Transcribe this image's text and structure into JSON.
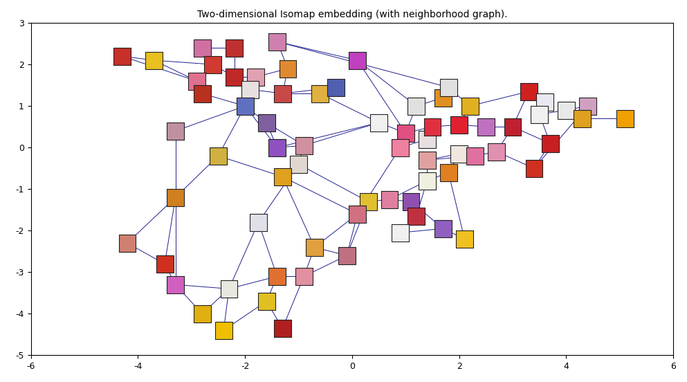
{
  "chart_data": {
    "type": "scatter",
    "title": "Two-dimensional Isomap embedding (with neighborhood graph).",
    "marker": "square",
    "x": [
      -4.3,
      -3.7,
      -2.8,
      -2.2,
      -1.4,
      -2.6,
      -2.9,
      -2.2,
      -1.8,
      -1.2,
      -2.8,
      -1.9,
      -1.3,
      -0.6,
      -2.0,
      0.1,
      -0.3,
      -1.6,
      -3.3,
      -1.4,
      -0.9,
      -2.5,
      -1.0,
      -1.3,
      -3.3,
      -1.75,
      -0.7,
      -4.2,
      -3.5,
      -3.3,
      -2.3,
      -1.4,
      -1.6,
      -2.8,
      -2.4,
      -1.3,
      -0.9,
      -0.1,
      0.3,
      0.7,
      1.1,
      0.1,
      1.2,
      0.9,
      1.7,
      2.1,
      0.5,
      1.0,
      0.9,
      1.4,
      1.2,
      1.7,
      1.5,
      2.0,
      2.2,
      2.5,
      1.4,
      2.0,
      1.4,
      1.8,
      2.3,
      2.7,
      3.0,
      3.3,
      3.6,
      3.5,
      4.0,
      4.4,
      4.3,
      5.1,
      3.4,
      3.7,
      1.8
    ],
    "y": [
      2.2,
      2.1,
      2.4,
      2.4,
      2.55,
      2.0,
      1.6,
      1.7,
      1.7,
      1.9,
      1.3,
      1.4,
      1.3,
      1.3,
      1.0,
      2.1,
      1.45,
      0.6,
      0.4,
      0.0,
      0.05,
      -0.2,
      -0.4,
      -0.7,
      -1.2,
      -1.8,
      -2.4,
      -2.3,
      -2.8,
      -3.3,
      -3.4,
      -3.1,
      -3.7,
      -4.0,
      -4.4,
      -4.35,
      -3.1,
      -2.6,
      -1.3,
      -1.25,
      -1.3,
      -1.6,
      -1.65,
      -2.05,
      -1.95,
      -2.2,
      0.6,
      0.35,
      0.0,
      0.2,
      1.0,
      1.2,
      0.5,
      0.55,
      1.0,
      0.5,
      -0.3,
      -0.15,
      -0.8,
      -0.6,
      -0.2,
      -0.1,
      0.5,
      1.35,
      1.1,
      0.8,
      0.9,
      1.0,
      0.7,
      0.7,
      -0.5,
      0.1,
      1.45
    ],
    "colors": [
      "#c8302a",
      "#e8c020",
      "#d070a0",
      "#c03030",
      "#d080b0",
      "#d03a30",
      "#e07090",
      "#c02828",
      "#e0a0b0",
      "#e08a30",
      "#b83020",
      "#e8e0e0",
      "#c84848",
      "#e0b040",
      "#6070c0",
      "#c040c0",
      "#5060b0",
      "#8060a0",
      "#c090a0",
      "#9050c0",
      "#d090a0",
      "#d0b040",
      "#e0d8d0",
      "#e0a020",
      "#d08020",
      "#e0e0e8",
      "#e0a040",
      "#d08070",
      "#d03020",
      "#d060c0",
      "#e8e8e0",
      "#e07030",
      "#e0c020",
      "#e0b010",
      "#f0c000",
      "#b02020",
      "#e090a0",
      "#c07080",
      "#e0c030",
      "#e080a0",
      "#9050b0",
      "#d07080",
      "#c03040",
      "#f0f0f0",
      "#9060c0",
      "#f0c020",
      "#f0f0f0",
      "#e05080",
      "#f080a0",
      "#e8e0e0",
      "#e0e0e0",
      "#e09020",
      "#e03040",
      "#e02030",
      "#e0b020",
      "#c070c0",
      "#e0a0a0",
      "#f0e8e0",
      "#f0f0e0",
      "#e08020",
      "#e070a0",
      "#e090b0",
      "#c02030",
      "#d02020",
      "#e8e8f0",
      "#f0f0f0",
      "#e8e8e8",
      "#d0a0c0",
      "#e0a020",
      "#f0a000",
      "#d03020",
      "#c82020",
      "#e0e0e0"
    ],
    "edges": [
      [
        0,
        1
      ],
      [
        0,
        6
      ],
      [
        1,
        6
      ],
      [
        1,
        5
      ],
      [
        2,
        5
      ],
      [
        2,
        3
      ],
      [
        3,
        7
      ],
      [
        5,
        7
      ],
      [
        5,
        6
      ],
      [
        6,
        10
      ],
      [
        7,
        8
      ],
      [
        7,
        11
      ],
      [
        8,
        9
      ],
      [
        8,
        11
      ],
      [
        4,
        9
      ],
      [
        4,
        15
      ],
      [
        9,
        12
      ],
      [
        11,
        12
      ],
      [
        12,
        13
      ],
      [
        11,
        14
      ],
      [
        10,
        14
      ],
      [
        14,
        17
      ],
      [
        14,
        18
      ],
      [
        14,
        19
      ],
      [
        12,
        16
      ],
      [
        13,
        16
      ],
      [
        15,
        50
      ],
      [
        15,
        47
      ],
      [
        4,
        72
      ],
      [
        13,
        46
      ],
      [
        17,
        19
      ],
      [
        17,
        20
      ],
      [
        18,
        24
      ],
      [
        19,
        20
      ],
      [
        19,
        46
      ],
      [
        20,
        46
      ],
      [
        20,
        22
      ],
      [
        21,
        24
      ],
      [
        21,
        14
      ],
      [
        21,
        23
      ],
      [
        22,
        23
      ],
      [
        22,
        25
      ],
      [
        23,
        26
      ],
      [
        22,
        38
      ],
      [
        23,
        41
      ],
      [
        24,
        27
      ],
      [
        24,
        28
      ],
      [
        24,
        29
      ],
      [
        27,
        28
      ],
      [
        28,
        29
      ],
      [
        29,
        30
      ],
      [
        29,
        33
      ],
      [
        30,
        33
      ],
      [
        30,
        34
      ],
      [
        30,
        31
      ],
      [
        31,
        32
      ],
      [
        32,
        35
      ],
      [
        32,
        34
      ],
      [
        31,
        36
      ],
      [
        35,
        36
      ],
      [
        25,
        30
      ],
      [
        25,
        31
      ],
      [
        26,
        36
      ],
      [
        26,
        37
      ],
      [
        36,
        37
      ],
      [
        37,
        41
      ],
      [
        37,
        38
      ],
      [
        26,
        41
      ],
      [
        38,
        39
      ],
      [
        39,
        40
      ],
      [
        38,
        41
      ],
      [
        40,
        42
      ],
      [
        42,
        43
      ],
      [
        43,
        44
      ],
      [
        44,
        45
      ],
      [
        40,
        44
      ],
      [
        39,
        58
      ],
      [
        41,
        48
      ],
      [
        42,
        58
      ],
      [
        45,
        59
      ],
      [
        46,
        47
      ],
      [
        47,
        48
      ],
      [
        48,
        49
      ],
      [
        47,
        52
      ],
      [
        49,
        52
      ],
      [
        50,
        51
      ],
      [
        51,
        72
      ],
      [
        50,
        47
      ],
      [
        52,
        53
      ],
      [
        53,
        54
      ],
      [
        54,
        72
      ],
      [
        53,
        55
      ],
      [
        56,
        57
      ],
      [
        56,
        58
      ],
      [
        57,
        59
      ],
      [
        58,
        59
      ],
      [
        57,
        60
      ],
      [
        60,
        61
      ],
      [
        55,
        62
      ],
      [
        61,
        62
      ],
      [
        62,
        63
      ],
      [
        63,
        64
      ],
      [
        64,
        65
      ],
      [
        65,
        66
      ],
      [
        66,
        67
      ],
      [
        67,
        68
      ],
      [
        68,
        69
      ],
      [
        65,
        71
      ],
      [
        70,
        71
      ],
      [
        61,
        70
      ],
      [
        62,
        71
      ],
      [
        54,
        63
      ],
      [
        60,
        56
      ],
      [
        67,
        70
      ]
    ],
    "xlim": [
      -6,
      6
    ],
    "ylim": [
      -5,
      3
    ],
    "xticks": [
      -6,
      -4,
      -2,
      0,
      2,
      4,
      6
    ],
    "yticks": [
      -5,
      -4,
      -3,
      -2,
      -1,
      0,
      1,
      2,
      3
    ]
  }
}
